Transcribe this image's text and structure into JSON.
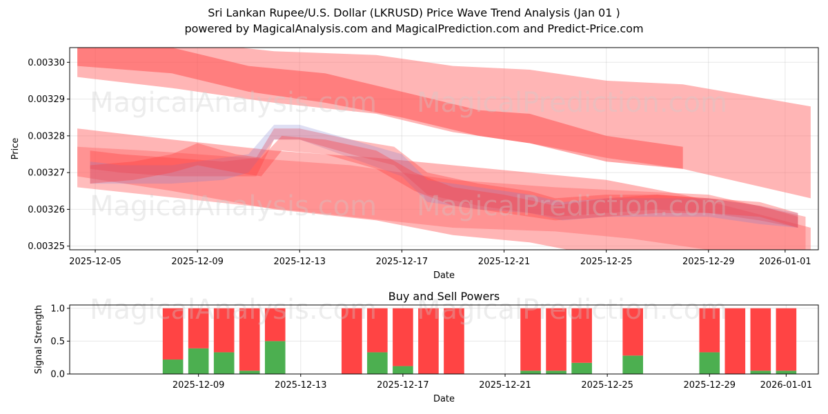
{
  "title_line1": "Sri Lankan Rupee/U.S. Dollar (LKRUSD) Price Wave Trend Analysis (Jan 01 )",
  "title_line2": "powered by MagicalAnalysis.com and MagicalPrediction.com and Predict-Price.com",
  "watermarks": [
    "MagicalAnalysis.com",
    "MagicalPrediction.com"
  ],
  "colors": {
    "band": "#ff6b6b",
    "band_dark": "#ff3b3b",
    "wave": "#7a7ad0",
    "buy": "#4caf50",
    "sell": "#ff4444"
  },
  "chart_data": [
    {
      "type": "area",
      "title": "",
      "xlabel": "Date",
      "ylabel": "Price",
      "xlim": [
        "2025-12-04",
        "2026-01-02.3"
      ],
      "ylim": [
        0.003249,
        0.003304
      ],
      "x_ticks": [
        "2025-12-05",
        "2025-12-09",
        "2025-12-13",
        "2025-12-17",
        "2025-12-21",
        "2025-12-25",
        "2025-12-29",
        "2026-01-01"
      ],
      "y_ticks": [
        "0.00325",
        "0.00326",
        "0.00327",
        "0.00328",
        "0.00329",
        "0.00330"
      ],
      "grid": true,
      "bands": [
        {
          "name": "upper-channel",
          "opacity": 0.5,
          "x": [
            "2025-12-04.3",
            "2025-12-08",
            "2025-12-12",
            "2025-12-16",
            "2025-12-19",
            "2025-12-22",
            "2025-12-25",
            "2025-12-28",
            "2026-01-02"
          ],
          "upper": [
            0.003307,
            0.003306,
            0.003303,
            0.003302,
            0.003299,
            0.003298,
            0.003295,
            0.003294,
            0.003288
          ],
          "lower": [
            0.003296,
            0.003293,
            0.003289,
            0.003286,
            0.003281,
            0.003278,
            0.003274,
            0.003271,
            0.003263
          ]
        },
        {
          "name": "upper-channel-dark",
          "opacity": 0.45,
          "x": [
            "2025-12-04.3",
            "2025-12-08",
            "2025-12-11",
            "2025-12-14",
            "2025-12-17",
            "2025-12-20",
            "2025-12-22",
            "2025-12-25",
            "2025-12-28"
          ],
          "upper": [
            0.003306,
            0.003304,
            0.003299,
            0.003297,
            0.003292,
            0.003287,
            0.003286,
            0.00328,
            0.003277
          ],
          "lower": [
            0.003299,
            0.003297,
            0.003292,
            0.003289,
            0.003285,
            0.00328,
            0.003278,
            0.003273,
            0.003271
          ]
        },
        {
          "name": "middle-channel",
          "opacity": 0.5,
          "x": [
            "2025-12-04.3",
            "2025-12-08",
            "2025-12-12",
            "2025-12-16",
            "2025-12-19",
            "2025-12-22",
            "2025-12-25",
            "2025-12-28",
            "2026-01-02"
          ],
          "upper": [
            0.003282,
            0.003279,
            0.003276,
            0.003274,
            0.003272,
            0.00327,
            0.003268,
            0.003264,
            0.003255
          ],
          "lower": [
            0.003269,
            0.003265,
            0.00326,
            0.003257,
            0.003253,
            0.003251,
            0.003247,
            0.003242,
            0.003236
          ]
        },
        {
          "name": "lower-channel",
          "opacity": 0.45,
          "x": [
            "2025-12-04.3",
            "2025-12-07",
            "2025-12-11",
            "2025-12-15",
            "2025-12-19",
            "2025-12-23",
            "2025-12-26",
            "2025-12-29",
            "2026-01-01.8"
          ],
          "upper": [
            0.003277,
            0.003276,
            0.003274,
            0.003272,
            0.003268,
            0.003266,
            0.003265,
            0.003264,
            0.003258
          ],
          "lower": [
            0.003266,
            0.003264,
            0.003261,
            0.003258,
            0.003255,
            0.003254,
            0.003252,
            0.003249,
            0.003245
          ]
        }
      ],
      "price_waves": [
        {
          "name": "wave-1",
          "x": [
            "2025-12-04.8",
            "2025-12-06",
            "2025-12-08",
            "2025-12-10",
            "2025-12-11.3",
            "2025-12-12",
            "2025-12-13",
            "2025-12-15",
            "2025-12-16.7",
            "2025-12-18",
            "2025-12-20",
            "2025-12-22",
            "2025-12-23",
            "2025-12-25",
            "2025-12-27",
            "2025-12-29",
            "2025-12-31",
            "2026-01-01.5"
          ],
          "upper": [
            0.003276,
            0.003275,
            0.003274,
            0.003273,
            0.003274,
            0.003282,
            0.003282,
            0.003279,
            0.003277,
            0.00327,
            0.003267,
            0.003265,
            0.003263,
            0.003264,
            0.003264,
            0.003263,
            0.003261,
            0.003258
          ],
          "lower": [
            0.003271,
            0.00327,
            0.003269,
            0.003269,
            0.003269,
            0.003279,
            0.003279,
            0.003275,
            0.003272,
            0.003264,
            0.003261,
            0.003259,
            0.003258,
            0.003259,
            0.00326,
            0.003259,
            0.003257,
            0.003255
          ]
        },
        {
          "name": "wave-2",
          "x": [
            "2025-12-04.8",
            "2025-12-06",
            "2025-12-08",
            "2025-12-10",
            "2025-12-11",
            "2025-12-12",
            "2025-12-13",
            "2025-12-15",
            "2025-12-17",
            "2025-12-18",
            "2025-12-20",
            "2025-12-22",
            "2025-12-23.3",
            "2025-12-25",
            "2025-12-27",
            "2025-12-29",
            "2025-12-31",
            "2026-01-01.5"
          ],
          "upper": [
            0.003273,
            0.003272,
            0.003272,
            0.003274,
            0.003275,
            0.003283,
            0.003283,
            0.003279,
            0.003275,
            0.003268,
            0.003266,
            0.003264,
            0.003262,
            0.003263,
            0.003263,
            0.003263,
            0.003261,
            0.003259
          ],
          "lower": [
            0.003267,
            0.003267,
            0.003267,
            0.003268,
            0.00327,
            0.003279,
            0.003279,
            0.003274,
            0.003269,
            0.003262,
            0.00326,
            0.003259,
            0.003257,
            0.003258,
            0.003258,
            0.003258,
            0.003256,
            0.003255
          ]
        },
        {
          "name": "wave-3",
          "x": [
            "2025-12-04.8",
            "2025-12-06.5",
            "2025-12-08",
            "2025-12-09",
            "2025-12-10.5",
            "2025-12-11.5",
            "2025-12-12.3",
            "2025-12-14",
            "2025-12-16",
            "2025-12-17.5",
            "2025-12-19",
            "2025-12-21",
            "2025-12-23",
            "2025-12-25",
            "2025-12-27",
            "2025-12-29",
            "2025-12-31",
            "2026-01-01.5"
          ],
          "upper": [
            0.003272,
            0.003273,
            0.003275,
            0.003278,
            0.003275,
            0.003274,
            0.00328,
            0.003279,
            0.003276,
            0.00327,
            0.003266,
            0.003264,
            0.003261,
            0.003263,
            0.003264,
            0.003263,
            0.003262,
            0.003259
          ],
          "lower": [
            0.003267,
            0.003268,
            0.00327,
            0.003272,
            0.00327,
            0.003269,
            0.003276,
            0.003275,
            0.003271,
            0.003265,
            0.003261,
            0.003259,
            0.003257,
            0.003258,
            0.003259,
            0.003259,
            0.003258,
            0.003255
          ]
        }
      ]
    },
    {
      "type": "bar",
      "title": "Buy and Sell Powers",
      "xlabel": "",
      "ylabel": "Signal Strength",
      "ylim": [
        0,
        1.05
      ],
      "x_ticks": [
        "2025-12-09",
        "2025-12-13",
        "2025-12-17",
        "2025-12-21",
        "2025-12-25",
        "2025-12-29",
        "2026-01-01"
      ],
      "y_ticks": [
        "0.0",
        "0.5",
        "1.0"
      ],
      "categories": [
        "2025-12-08",
        "2025-12-09",
        "2025-12-10",
        "2025-12-11",
        "2025-12-12",
        "2025-12-15",
        "2025-12-16",
        "2025-12-17",
        "2025-12-18",
        "2025-12-19",
        "2025-12-22",
        "2025-12-23",
        "2025-12-24",
        "2025-12-26",
        "2025-12-29",
        "2025-12-30",
        "2025-12-31",
        "2026-01-01"
      ],
      "series": [
        {
          "name": "Buy",
          "values": [
            0.22,
            0.39,
            0.33,
            0.05,
            0.5,
            0.0,
            0.33,
            0.12,
            0.0,
            0.0,
            0.05,
            0.05,
            0.17,
            0.28,
            0.33,
            0.0,
            0.05,
            0.05
          ]
        },
        {
          "name": "Sell",
          "values": [
            0.78,
            0.61,
            0.67,
            0.95,
            0.5,
            1.0,
            0.67,
            0.88,
            1.0,
            1.0,
            0.95,
            0.95,
            0.83,
            0.72,
            0.67,
            1.0,
            0.95,
            0.95
          ]
        }
      ]
    }
  ]
}
